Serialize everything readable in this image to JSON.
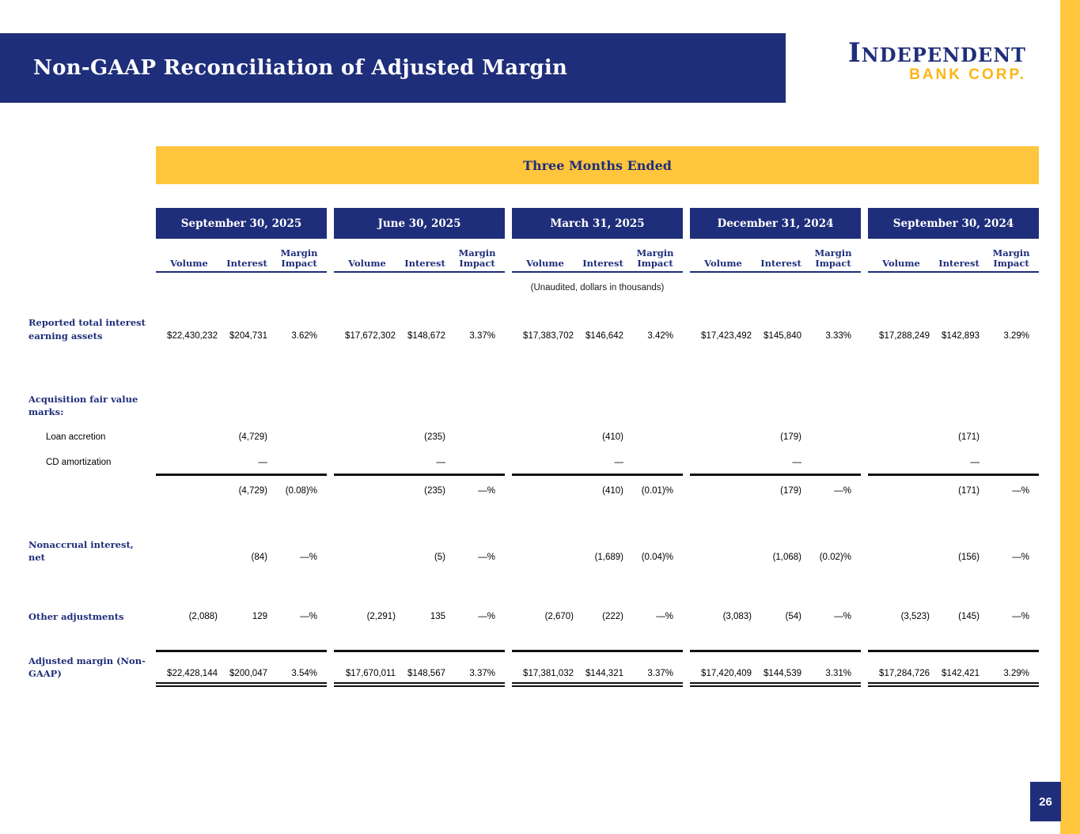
{
  "page": {
    "title": "Non-GAAP Reconciliation of Adjusted Margin",
    "page_number": "26",
    "logo": {
      "line1": "Independent",
      "line2": "BANK CORP."
    }
  },
  "colors": {
    "navy": "#1f2e7a",
    "gold": "#ffc53d",
    "logo_gold": "#fdb515"
  },
  "table": {
    "banner": "Three Months Ended",
    "note": "(Unaudited, dollars in thousands)",
    "periods": [
      "September 30, 2025",
      "June 30, 2025",
      "March 31, 2025",
      "December 31, 2024",
      "September 30, 2024"
    ],
    "subcolumns": [
      "Volume",
      "Interest",
      "Margin Impact"
    ],
    "rows": [
      {
        "label": "Reported total interest earning assets",
        "style": "data",
        "cells": [
          [
            "$22,430,232",
            "$204,731",
            "3.62%"
          ],
          [
            "$17,672,302",
            "$148,672",
            "3.37%"
          ],
          [
            "$17,383,702",
            "$146,642",
            "3.42%"
          ],
          [
            "$17,423,492",
            "$145,840",
            "3.33%"
          ],
          [
            "$17,288,249",
            "$142,893",
            "3.29%"
          ]
        ]
      },
      {
        "label": "Acquisition fair value marks:",
        "style": "section",
        "cells": null
      },
      {
        "label": "Loan accretion",
        "style": "item",
        "cells": [
          [
            "",
            "(4,729)",
            ""
          ],
          [
            "",
            "(235)",
            ""
          ],
          [
            "",
            "(410)",
            ""
          ],
          [
            "",
            "(179)",
            ""
          ],
          [
            "",
            "(171)",
            ""
          ]
        ]
      },
      {
        "label": "CD amortization",
        "style": "item-underline",
        "cells": [
          [
            "",
            "—",
            ""
          ],
          [
            "",
            "—",
            ""
          ],
          [
            "",
            "—",
            ""
          ],
          [
            "",
            "—",
            ""
          ],
          [
            "",
            "—",
            ""
          ]
        ]
      },
      {
        "label": "",
        "style": "subtotal",
        "cells": [
          [
            "",
            "(4,729)",
            "(0.08)%"
          ],
          [
            "",
            "(235)",
            "—%"
          ],
          [
            "",
            "(410)",
            "(0.01)%"
          ],
          [
            "",
            "(179)",
            "—%"
          ],
          [
            "",
            "(171)",
            "—%"
          ]
        ]
      },
      {
        "label": "Nonaccrual interest, net",
        "style": "data",
        "cells": [
          [
            "",
            "(84)",
            "—%"
          ],
          [
            "",
            "(5)",
            "—%"
          ],
          [
            "",
            "(1,689)",
            "(0.04)%"
          ],
          [
            "",
            "(1,068)",
            "(0.02)%"
          ],
          [
            "",
            "(156)",
            "—%"
          ]
        ]
      },
      {
        "label": "Other adjustments",
        "style": "data",
        "cells": [
          [
            "(2,088)",
            "129",
            "—%"
          ],
          [
            "(2,291)",
            "135",
            "—%"
          ],
          [
            "(2,670)",
            "(222)",
            "—%"
          ],
          [
            "(3,083)",
            "(54)",
            "—%"
          ],
          [
            "(3,523)",
            "(145)",
            "—%"
          ]
        ]
      },
      {
        "label": "Adjusted margin (Non-GAAP)",
        "style": "total",
        "cells": [
          [
            "$22,428,144",
            "$200,047",
            "3.54%"
          ],
          [
            "$17,670,011",
            "$148,567",
            "3.37%"
          ],
          [
            "$17,381,032",
            "$144,321",
            "3.37%"
          ],
          [
            "$17,420,409",
            "$144,539",
            "3.31%"
          ],
          [
            "$17,284,726",
            "$142,421",
            "3.29%"
          ]
        ]
      }
    ]
  }
}
